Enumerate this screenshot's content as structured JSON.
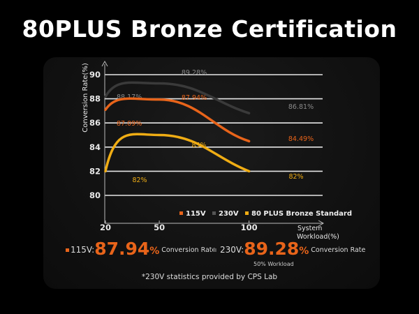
{
  "page": {
    "title": "80PLUS Bronze Certification"
  },
  "colors": {
    "s115": "#e8641a",
    "s230": "#3a3a3a",
    "bronze": "#f0ad14",
    "grid": "#e6e6e6",
    "axis": "#bbbbbb"
  },
  "chart_data": {
    "type": "line",
    "ylabel": "Conversion Rate(%)",
    "xlabel": "System Workload(%)",
    "xlabel_lines": [
      "System",
      "Workload(%)"
    ],
    "xticks": [
      20,
      50,
      100
    ],
    "yticks": [
      80,
      82,
      84,
      86,
      88,
      90
    ],
    "ylim": [
      80,
      90
    ],
    "grid": true,
    "legend_position": "bottom-right",
    "series": [
      {
        "name": "115V",
        "color": "#e8641a",
        "x": [
          20,
          50,
          100
        ],
        "y": [
          87.09,
          87.94,
          84.49
        ],
        "labels": [
          "87.09%",
          "87.94%",
          "84.49%"
        ]
      },
      {
        "name": "230V",
        "color": "#3a3a3a",
        "x": [
          20,
          50,
          100
        ],
        "y": [
          88.17,
          89.28,
          86.81
        ],
        "labels": [
          "88.17%",
          "89.28%",
          "86.81%"
        ]
      },
      {
        "name": "80 PLUS Bronze Standard",
        "color": "#f0ad14",
        "x": [
          20,
          50,
          100
        ],
        "y": [
          82,
          85,
          82
        ],
        "labels": [
          "82%",
          "85%",
          "82%"
        ]
      }
    ]
  },
  "stats": {
    "v115": {
      "label": "115V:",
      "value": "87.94",
      "unit": "%",
      "caption": "Conversion Rate"
    },
    "v230": {
      "label": "230V:",
      "value": "89.28",
      "unit": "%",
      "caption": "Conversion Rate",
      "sub": "50% Workload"
    }
  },
  "footnote": "*230V statistics provided by CPS Lab"
}
